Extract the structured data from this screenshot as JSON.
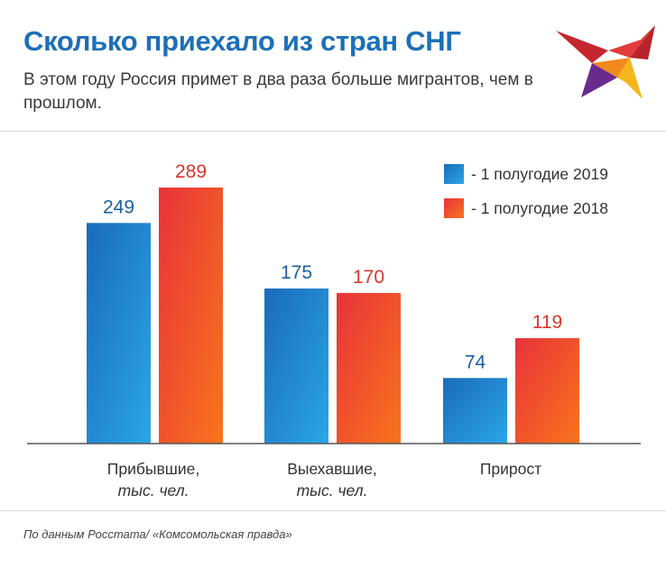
{
  "header": {
    "title": "Сколько приехало из стран СНГ",
    "subtitle": "В этом году Россия примет в два раза больше мигрантов, чем в прошлом."
  },
  "chart_data": {
    "type": "bar",
    "categories": [
      {
        "label": "Прибывшие,",
        "unit": "тыс. чел."
      },
      {
        "label": "Выехавшие,",
        "unit": "тыс. чел."
      },
      {
        "label": "Прирост",
        "unit": ""
      }
    ],
    "series": [
      {
        "name": "- 1 полугодие 2019",
        "values": [
          249,
          175,
          74
        ],
        "color": "#1a72c0",
        "label_color": "#1a5f9e"
      },
      {
        "name": "- 1 полугодие 2018",
        "values": [
          289,
          170,
          119
        ],
        "color": "#ee4a2e",
        "label_color": "#d9362a"
      }
    ],
    "ylim": [
      0,
      289
    ],
    "grid": false,
    "legend": "top-right"
  },
  "footer": {
    "source": "По данным Росстата/ «Комсомольская правда»"
  },
  "colors": {
    "title": "#1d6fb8",
    "series_2019": "#1a72c0",
    "series_2018": "#ee4a2e"
  }
}
